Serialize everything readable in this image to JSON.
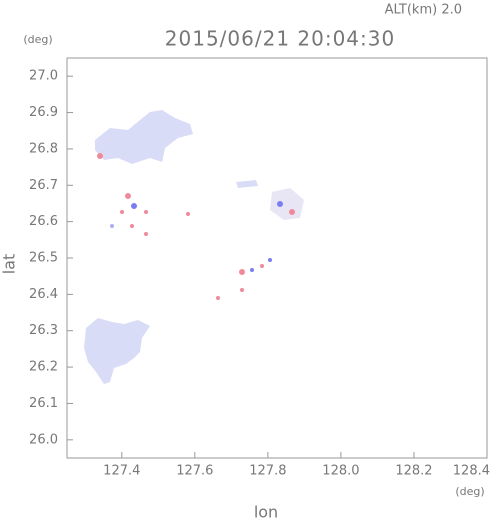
{
  "chart_data": {
    "type": "map",
    "annotation": "ALT(km) 2.0",
    "title": "2015/06/21 20:04:30",
    "y_unit": "(deg)",
    "x_unit": "(deg)",
    "ylabel": "lat",
    "xlabel": "lon",
    "xlim": [
      127.25,
      128.4
    ],
    "ylim": [
      25.95,
      27.05
    ],
    "xticks": [
      127.4,
      127.6,
      127.8,
      {
        "value": 128.0,
        "label": "128.0"
      },
      128.2,
      128.4
    ],
    "yticks": [
      {
        "value": 26.0,
        "label": "26.0"
      },
      26.1,
      26.2,
      26.3,
      26.4,
      26.5,
      26.6,
      26.7,
      26.8,
      26.9,
      {
        "value": 27.0,
        "label": "27.0"
      }
    ]
  }
}
